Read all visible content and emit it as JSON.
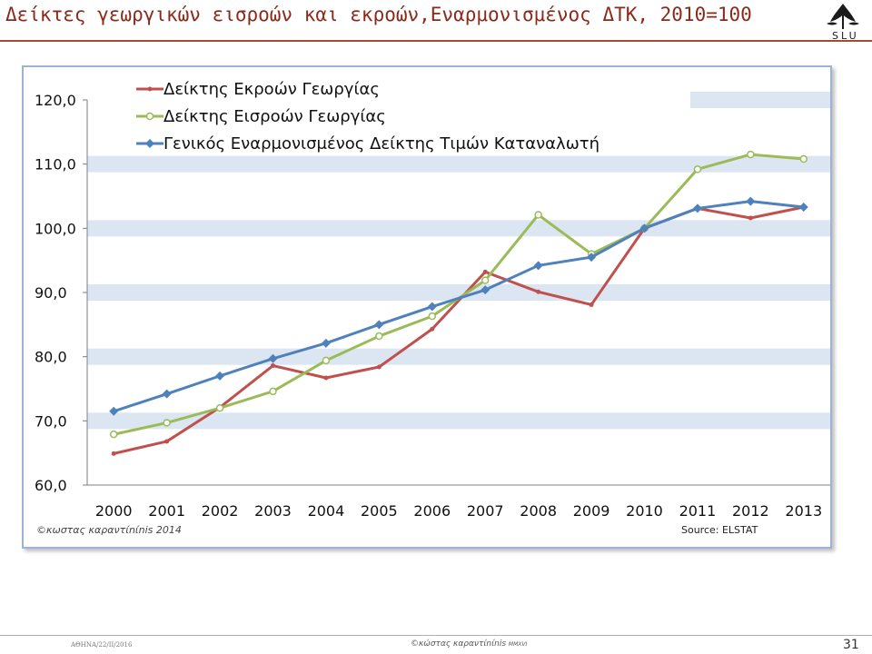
{
  "slide": {
    "title": "Δείκτες γεωργικών εισροών και εκροών,Εναρμονισμένος ΔΤΚ, 2010=100",
    "logo_text": "SLU",
    "copyright_chart": "©κωστας καραντίnίnis 2014",
    "source": "Source: ELSTAT",
    "footer_left": "ΑΘΗΝΑ/22/ΙΙ/2016",
    "footer_center_main": "©κώστας καραντίnίnis ",
    "footer_center_small": "MMXVI",
    "page_number": "31"
  },
  "colors": {
    "title": "#8b2a1a",
    "output": "#c0504d",
    "input": "#9bbb59",
    "hicp": "#4f81bd",
    "band": "#dce6f2"
  },
  "chart_data": {
    "type": "line",
    "x": [
      "2000",
      "2001",
      "2002",
      "2003",
      "2004",
      "2005",
      "2006",
      "2007",
      "2008",
      "2009",
      "2010",
      "2011",
      "2012",
      "2013"
    ],
    "ylim": [
      60,
      120
    ],
    "yticks": [
      "60,0",
      "70,0",
      "80,0",
      "90,0",
      "100,0",
      "110,0",
      "120,0"
    ],
    "legend_position": "top-left",
    "series": [
      {
        "name": "Δείκτης Εκροών Γεωργίας",
        "color": "#c0504d",
        "marker": "dot",
        "values": [
          64.9,
          66.8,
          72.1,
          78.6,
          76.7,
          78.4,
          84.3,
          93.2,
          90.1,
          88.1,
          100.0,
          103.1,
          101.6,
          103.3
        ]
      },
      {
        "name": "Δείκτης Εισροών Γεωργίας",
        "color": "#9bbb59",
        "marker": "circle",
        "values": [
          67.9,
          69.7,
          72.0,
          74.6,
          79.4,
          83.2,
          86.3,
          91.9,
          102.1,
          96.0,
          100.0,
          109.2,
          111.5,
          110.8
        ]
      },
      {
        "name": "Γενικός Εναρμονισμένος Δείκτης Τιμών Καταναλωτή",
        "color": "#4f81bd",
        "marker": "diamond",
        "values": [
          71.5,
          74.2,
          77.0,
          79.7,
          82.1,
          85.0,
          87.8,
          90.4,
          94.2,
          95.5,
          100.0,
          103.1,
          104.2,
          103.3
        ]
      }
    ]
  }
}
